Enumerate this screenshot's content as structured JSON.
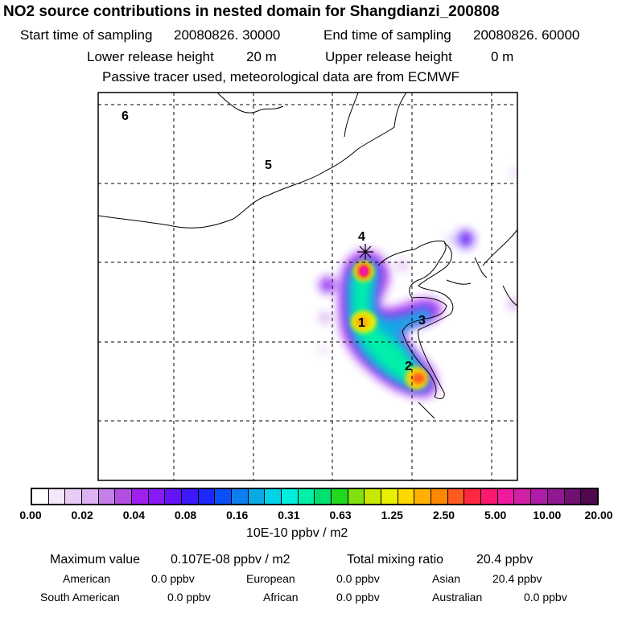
{
  "header": {
    "title": "NO2 source contributions in nested domain for Shangdianzi_200808",
    "start_label": "Start time of sampling",
    "start_value": "20080826. 30000",
    "end_label": "End time of sampling",
    "end_value": "20080826. 60000",
    "lower_label": "Lower release height",
    "lower_value": "20 m",
    "upper_label": "Upper release height",
    "upper_value": "0 m",
    "note": "Passive tracer used, meteorological data are from ECMWF"
  },
  "map": {
    "region_labels": [
      "1",
      "2",
      "3",
      "4",
      "5",
      "6"
    ],
    "receptor_marker": "star"
  },
  "colorbar": {
    "ticks": [
      "0.00",
      "0.02",
      "0.04",
      "0.08",
      "0.16",
      "0.31",
      "0.63",
      "1.25",
      "2.50",
      "5.00",
      "10.00",
      "20.00"
    ],
    "colors": [
      "#ffffff",
      "#f4e6fb",
      "#e8ccf6",
      "#dcb2f2",
      "#c57fea",
      "#b24fe3",
      "#a020f0",
      "#8a1af5",
      "#6412f8",
      "#3c18fa",
      "#1c28fc",
      "#0a50f8",
      "#0c7ef0",
      "#0aaae6",
      "#00d2e8",
      "#00f0e0",
      "#00f0a8",
      "#00e070",
      "#20d820",
      "#80e010",
      "#c8e800",
      "#e8f000",
      "#ffd800",
      "#ffb000",
      "#ff8800",
      "#ff5a20",
      "#ff2840",
      "#ff1870",
      "#f01aa0",
      "#d020a8",
      "#b01ca8",
      "#901890",
      "#701070",
      "#500850"
    ],
    "units": "10E-10 ppbv / m2"
  },
  "stats": {
    "max_label": "Maximum value",
    "max_value": "0.107E-08 ppbv / m2",
    "total_label": "Total mixing ratio",
    "total_value": "20.4 ppbv",
    "regions": [
      {
        "name": "American",
        "value": "0.0 ppbv"
      },
      {
        "name": "European",
        "value": "0.0 ppbv"
      },
      {
        "name": "Asian",
        "value": "20.4 ppbv"
      },
      {
        "name": "South American",
        "value": "0.0 ppbv"
      },
      {
        "name": "African",
        "value": "0.0 ppbv"
      },
      {
        "name": "Australian",
        "value": "0.0 ppbv"
      }
    ]
  }
}
